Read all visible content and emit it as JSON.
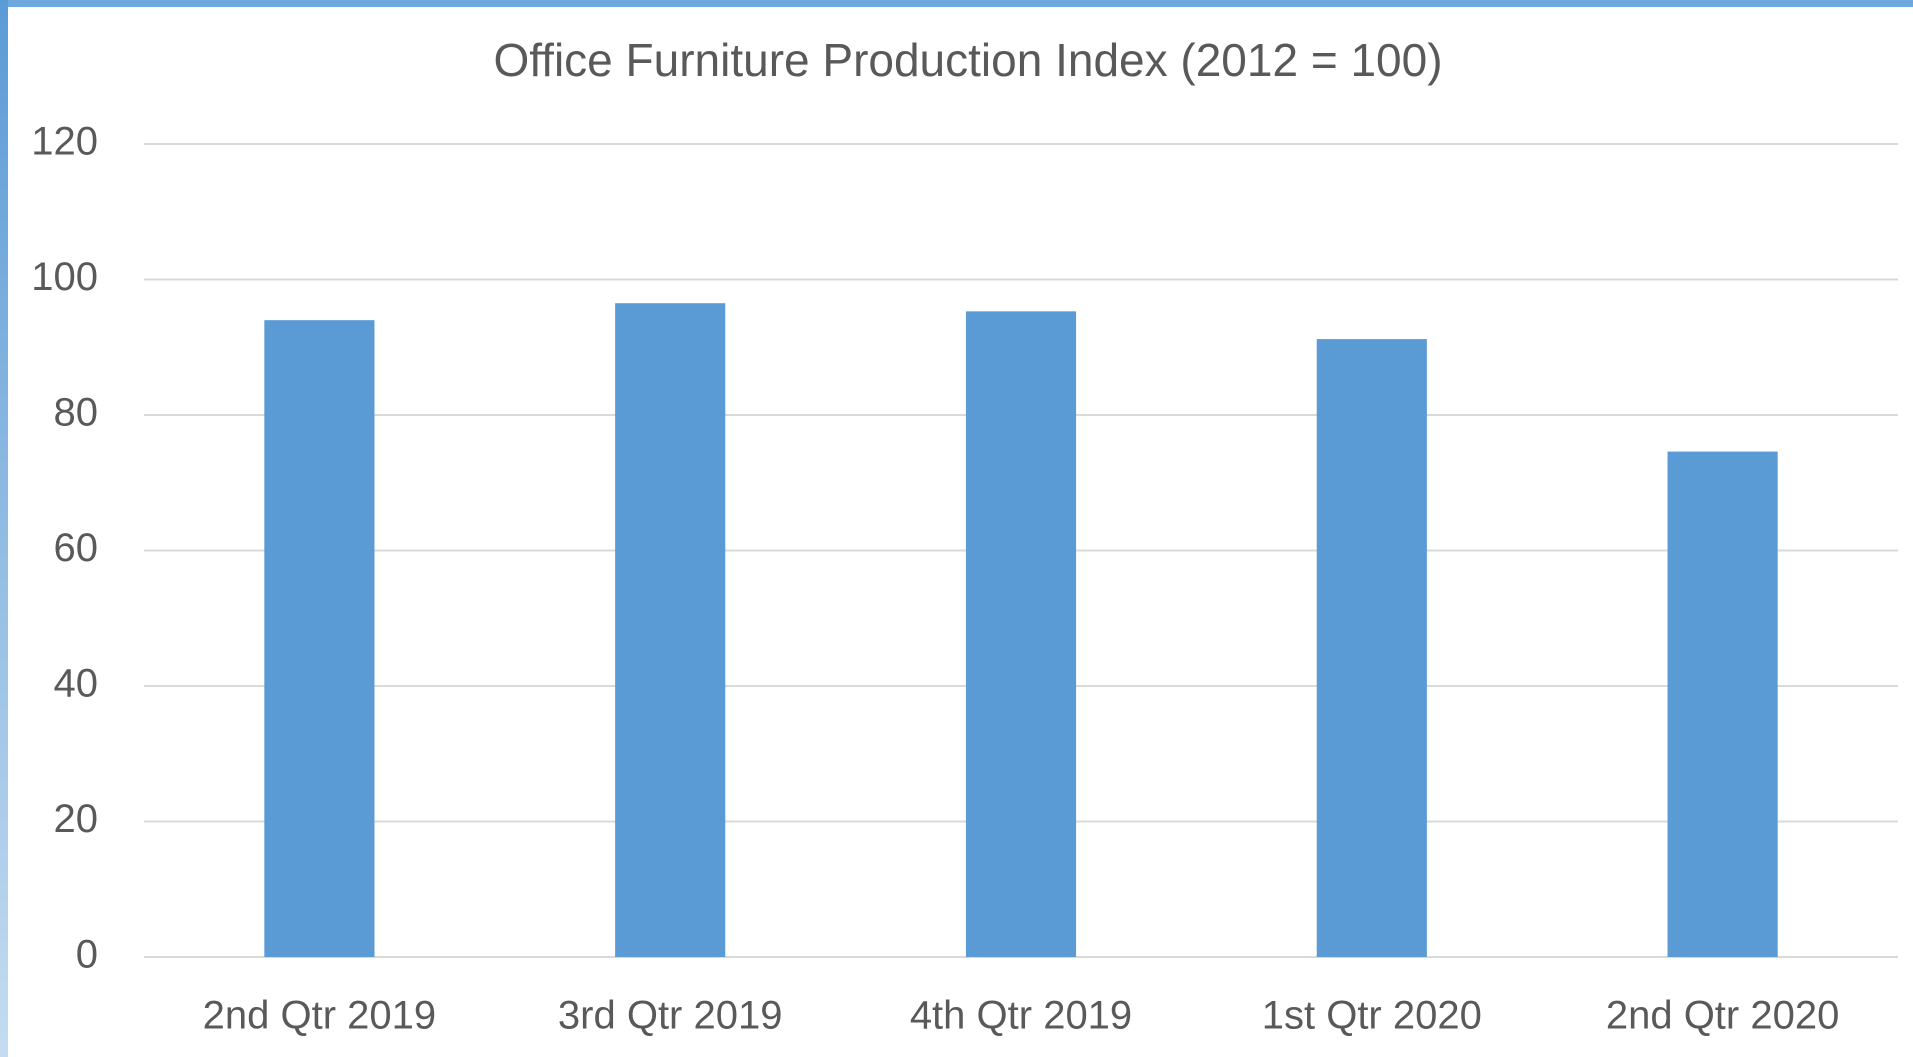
{
  "chart_data": {
    "type": "bar",
    "title": "Office Furniture Production Index (2012 = 100)",
    "categories": [
      "2nd Qtr 2019",
      "3rd Qtr 2019",
      "4th Qtr 2019",
      "1st Qtr 2020",
      "2nd Qtr 2020"
    ],
    "values": [
      94,
      96.5,
      95.3,
      91.2,
      74.6
    ],
    "color": "#5b9bd5",
    "ylim": [
      0,
      120
    ],
    "yticks": [
      0,
      20,
      40,
      60,
      80,
      100,
      120
    ],
    "grid": true
  }
}
